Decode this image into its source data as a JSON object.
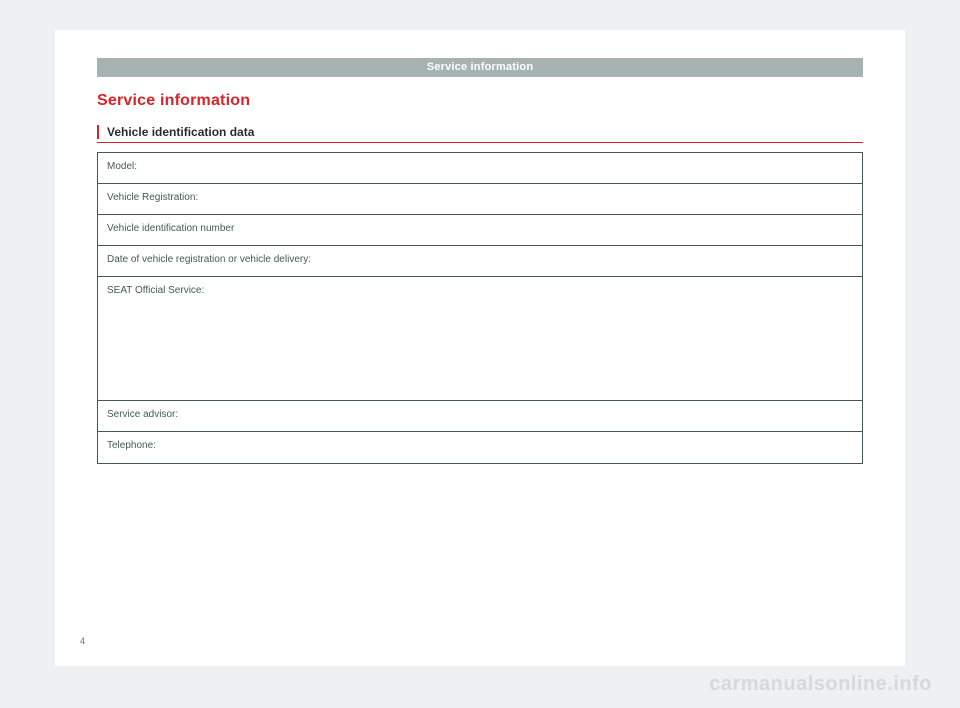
{
  "header": {
    "title": "Service information"
  },
  "page": {
    "title": "Service information",
    "section_label": "Vehicle identification data",
    "page_number": "4"
  },
  "form": {
    "rows": [
      {
        "label": "Model:",
        "tall": false
      },
      {
        "label": "Vehicle Registration:",
        "tall": false
      },
      {
        "label": "Vehicle identification number",
        "tall": false
      },
      {
        "label": "Date of vehicle registration or vehicle delivery:",
        "tall": false
      },
      {
        "label": "SEAT Official Service:",
        "tall": true
      },
      {
        "label": "Service advisor:",
        "tall": false
      },
      {
        "label": "Telephone:",
        "tall": false
      }
    ]
  },
  "watermark": "carmanualsonline.info",
  "colors": {
    "page_bg": "#eef1f2",
    "paper_bg": "#ffffff",
    "header_bar": "#a7b3b1",
    "accent_red": "#d8232a",
    "border": "#445a5a",
    "label_text": "#445a5a",
    "watermark": "#d6d9da"
  }
}
